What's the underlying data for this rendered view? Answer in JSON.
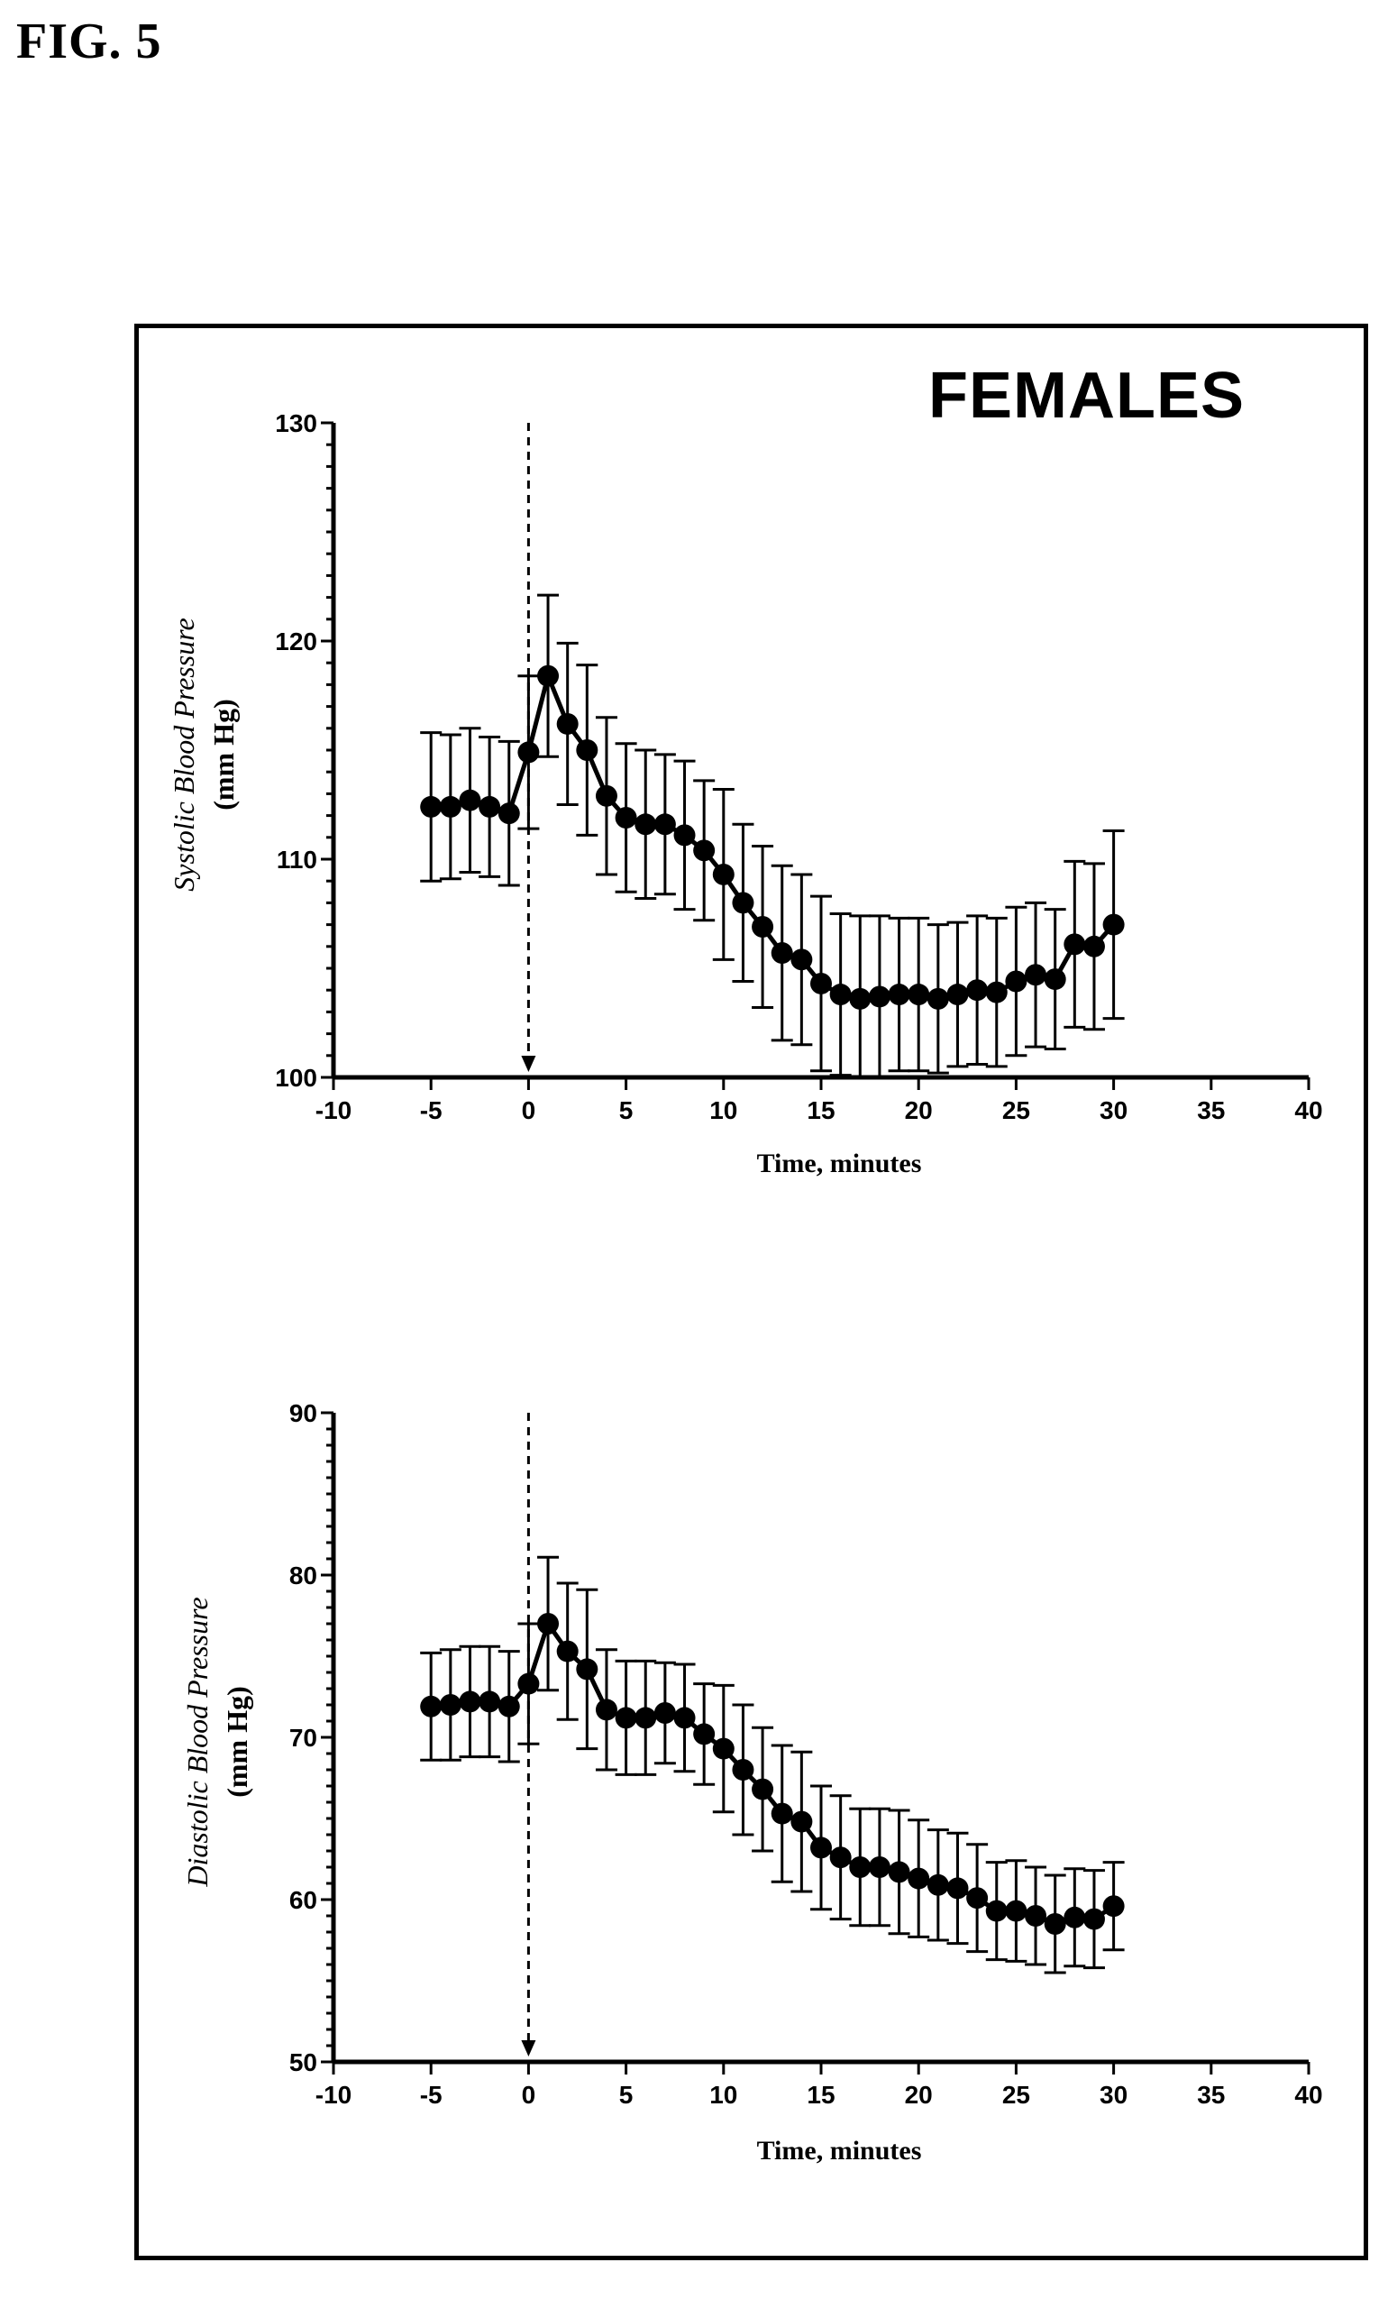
{
  "figure_label": "FIG. 5",
  "panel_title": "FEMALES",
  "chart_data": [
    {
      "type": "line",
      "title": "",
      "xlabel": "Time, minutes",
      "ylabel_line1": "Systolic Blood Pressure",
      "ylabel_line2": "(mm Hg)",
      "xlim": [
        -10,
        40
      ],
      "ylim": [
        100,
        130
      ],
      "xticks": [
        -10,
        -5,
        0,
        5,
        10,
        15,
        20,
        25,
        30,
        35,
        40
      ],
      "xtick_labels": [
        "-10",
        "-5",
        "0",
        "5",
        "10",
        "15",
        "20",
        "25",
        "30",
        "35",
        "40"
      ],
      "yticks": [
        100,
        110,
        120,
        130
      ],
      "ytick_labels": [
        "100",
        "110",
        "120",
        "130"
      ],
      "marker_line_x": 0,
      "series": [
        {
          "x": [
            -5,
            -4,
            -3,
            -2,
            -1,
            0,
            1,
            2,
            3,
            4,
            5,
            6,
            7,
            8,
            9,
            10,
            11,
            12,
            13,
            14,
            15,
            16,
            17,
            18,
            19,
            20,
            21,
            22,
            23,
            24,
            25,
            26,
            27,
            28,
            29,
            30
          ],
          "y": [
            112.4,
            112.4,
            112.7,
            112.4,
            112.1,
            114.9,
            118.4,
            116.2,
            115.0,
            112.9,
            111.9,
            111.6,
            111.6,
            111.1,
            110.4,
            109.3,
            108.0,
            106.9,
            105.7,
            105.4,
            104.3,
            103.8,
            103.6,
            103.7,
            103.8,
            103.8,
            103.6,
            103.8,
            104.0,
            103.9,
            104.4,
            104.7,
            104.5,
            106.1,
            106.0,
            107.0
          ],
          "err": [
            3.4,
            3.3,
            3.3,
            3.2,
            3.3,
            3.5,
            3.7,
            3.7,
            3.9,
            3.6,
            3.4,
            3.4,
            3.2,
            3.4,
            3.2,
            3.9,
            3.6,
            3.7,
            4.0,
            3.9,
            4.0,
            3.7,
            3.8,
            3.7,
            3.5,
            3.5,
            3.4,
            3.3,
            3.4,
            3.4,
            3.4,
            3.3,
            3.2,
            3.8,
            3.8,
            4.3
          ]
        }
      ]
    },
    {
      "type": "line",
      "title": "",
      "xlabel": "Time, minutes",
      "ylabel_line1": "Diastolic Blood Pressure",
      "ylabel_line2": "(mm Hg)",
      "xlim": [
        -10,
        40
      ],
      "ylim": [
        50,
        90
      ],
      "xticks": [
        -10,
        -5,
        0,
        5,
        10,
        15,
        20,
        25,
        30,
        35,
        40
      ],
      "xtick_labels": [
        "-10",
        "-5",
        "0",
        "5",
        "10",
        "15",
        "20",
        "25",
        "30",
        "35",
        "40"
      ],
      "yticks": [
        50,
        60,
        70,
        80,
        90
      ],
      "ytick_labels": [
        "50",
        "60",
        "70",
        "80",
        "90"
      ],
      "marker_line_x": 0,
      "series": [
        {
          "x": [
            -5,
            -4,
            -3,
            -2,
            -1,
            0,
            1,
            2,
            3,
            4,
            5,
            6,
            7,
            8,
            9,
            10,
            11,
            12,
            13,
            14,
            15,
            16,
            17,
            18,
            19,
            20,
            21,
            22,
            23,
            24,
            25,
            26,
            27,
            28,
            29,
            30
          ],
          "y": [
            71.9,
            72.0,
            72.2,
            72.2,
            71.9,
            73.3,
            77.0,
            75.3,
            74.2,
            71.7,
            71.2,
            71.2,
            71.5,
            71.2,
            70.2,
            69.3,
            68.0,
            66.8,
            65.3,
            64.8,
            63.2,
            62.6,
            62.0,
            62.0,
            61.7,
            61.3,
            60.9,
            60.7,
            60.1,
            59.3,
            59.3,
            59.0,
            58.5,
            58.9,
            58.8,
            59.6
          ],
          "err": [
            3.3,
            3.4,
            3.4,
            3.4,
            3.4,
            3.7,
            4.1,
            4.2,
            4.9,
            3.7,
            3.5,
            3.5,
            3.1,
            3.3,
            3.1,
            3.9,
            4.0,
            3.8,
            4.2,
            4.3,
            3.8,
            3.8,
            3.6,
            3.6,
            3.8,
            3.6,
            3.4,
            3.4,
            3.3,
            3.0,
            3.1,
            3.0,
            3.0,
            3.0,
            3.0,
            2.7
          ]
        }
      ]
    }
  ]
}
